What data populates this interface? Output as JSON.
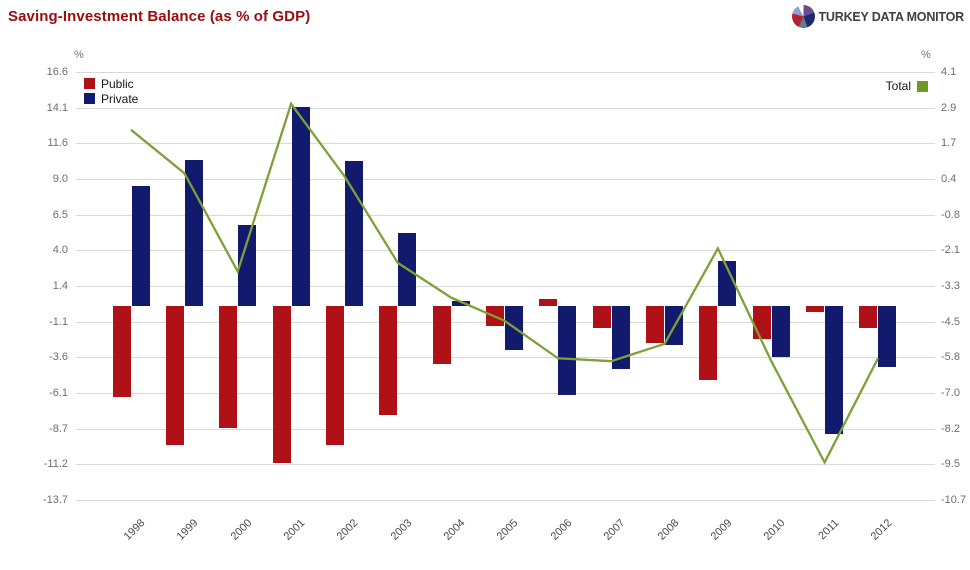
{
  "header": {
    "title": "Saving-Investment Balance (as % of GDP)",
    "brand": "TURKEY DATA MONITOR"
  },
  "chart_data": {
    "type": "bar",
    "subtype": "bars-with-line-overlay",
    "categories": [
      "1998",
      "1999",
      "2000",
      "2001",
      "2002",
      "2003",
      "2004",
      "2005",
      "2006",
      "2007",
      "2008",
      "2009",
      "2010",
      "2011",
      "2012"
    ],
    "series": [
      {
        "name": "Public",
        "type": "bar",
        "axis": "left",
        "color": "#b01116",
        "values": [
          -6.4,
          -9.8,
          -8.6,
          -11.1,
          -9.8,
          -7.7,
          -4.1,
          -1.4,
          0.5,
          -1.5,
          -2.6,
          -5.2,
          -2.3,
          -0.4,
          -1.5
        ]
      },
      {
        "name": "Private",
        "type": "bar",
        "axis": "left",
        "color": "#121a6e",
        "values": [
          8.5,
          10.4,
          5.8,
          14.1,
          10.3,
          5.2,
          0.4,
          -3.1,
          -6.3,
          -4.4,
          -2.7,
          3.2,
          -3.6,
          -9.0,
          -4.3
        ]
      },
      {
        "name": "Total",
        "type": "line",
        "axis": "right",
        "color": "#7da137",
        "swatch_color": "#6f9b25",
        "values": [
          2.1,
          0.6,
          -2.8,
          3.0,
          0.5,
          -2.5,
          -3.7,
          -4.5,
          -5.8,
          -5.9,
          -5.3,
          -2.0,
          -5.9,
          -9.4,
          -5.8
        ]
      }
    ],
    "left_axis": {
      "label": "%",
      "max": 16.6,
      "min": -13.7,
      "ticks": [
        "16.6",
        "14.1",
        "11.6",
        "9.0",
        "6.5",
        "4.0",
        "1.4",
        "-1.1",
        "-3.6",
        "-6.1",
        "-8.7",
        "-11.2",
        "-13.7"
      ]
    },
    "right_axis": {
      "label": "%",
      "max": 4.1,
      "min": -10.7,
      "ticks": [
        "4.1",
        "2.9",
        "1.7",
        "0.4",
        "-0.8",
        "-2.1",
        "-3.3",
        "-4.5",
        "-5.8",
        "-7.0",
        "-8.2",
        "-9.5",
        "-10.7"
      ]
    },
    "grid": true,
    "legend_position": {
      "bars": "top-left-inside",
      "line": "top-right-inside"
    },
    "title_color": "#9a0c10",
    "grid_color": "#d9d9d9"
  }
}
